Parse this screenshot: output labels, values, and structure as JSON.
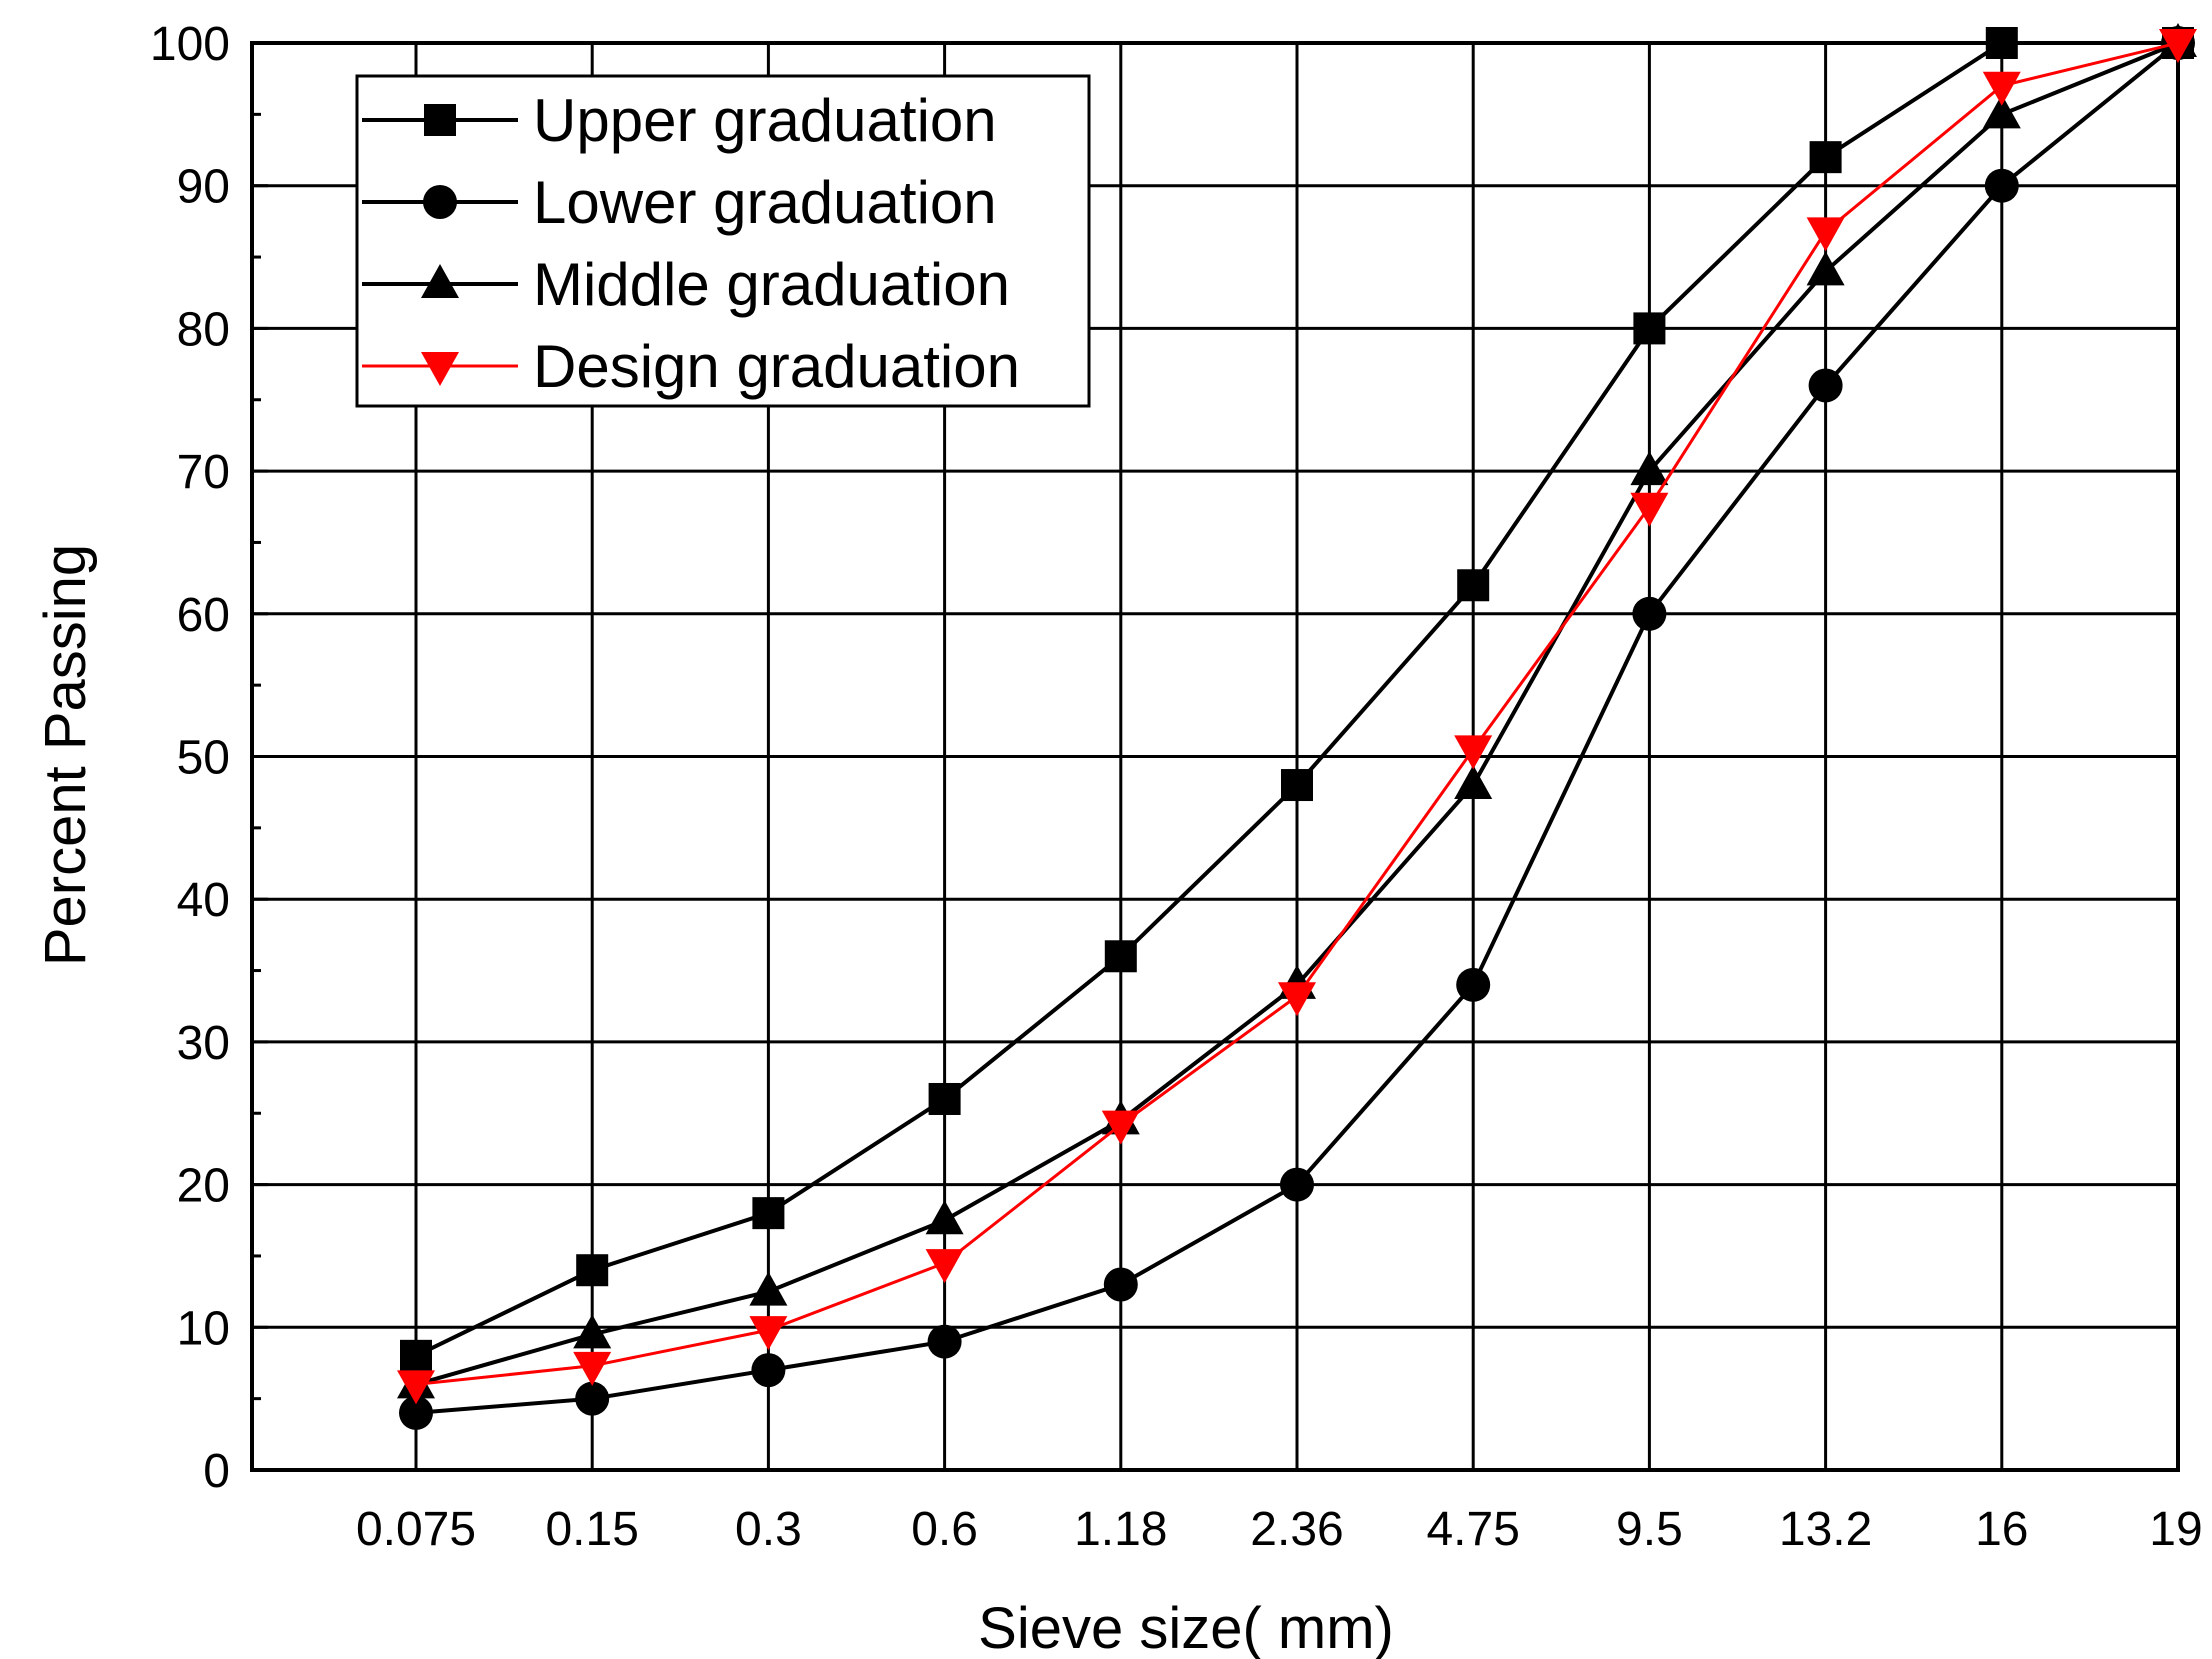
{
  "chart_data": {
    "type": "line",
    "title": "",
    "xlabel": "Sieve size(  mm)",
    "ylabel": "Percent Passing",
    "categories": [
      "0.075",
      "0.15",
      "0.3",
      "0.6",
      "1.18",
      "2.36",
      "4.75",
      "9.5",
      "13.2",
      "16",
      "19"
    ],
    "yticks": [
      0,
      10,
      20,
      30,
      40,
      50,
      60,
      70,
      80,
      90,
      100
    ],
    "ylim": [
      0,
      100
    ],
    "grid": true,
    "legend_position": "top-left",
    "series": [
      {
        "name": "Upper graduation",
        "marker": "square",
        "color": "#000000",
        "values": [
          8,
          14,
          18,
          26,
          36,
          48,
          62,
          80,
          92,
          100,
          100
        ]
      },
      {
        "name": "Lower graduation",
        "marker": "circle",
        "color": "#000000",
        "values": [
          4,
          5,
          7,
          9,
          13,
          20,
          34,
          60,
          76,
          90,
          100
        ]
      },
      {
        "name": "Middle graduation",
        "marker": "triangle-up",
        "color": "#000000",
        "values": [
          6,
          9.5,
          12.5,
          17.5,
          24.5,
          34,
          48,
          70,
          84,
          95,
          100
        ]
      },
      {
        "name": "Design graduation",
        "marker": "triangle-down",
        "color": "#ff0000",
        "values": [
          6,
          7.3,
          9.8,
          14.5,
          24.2,
          33.2,
          50.5,
          67.5,
          86.8,
          97,
          100
        ]
      }
    ]
  }
}
